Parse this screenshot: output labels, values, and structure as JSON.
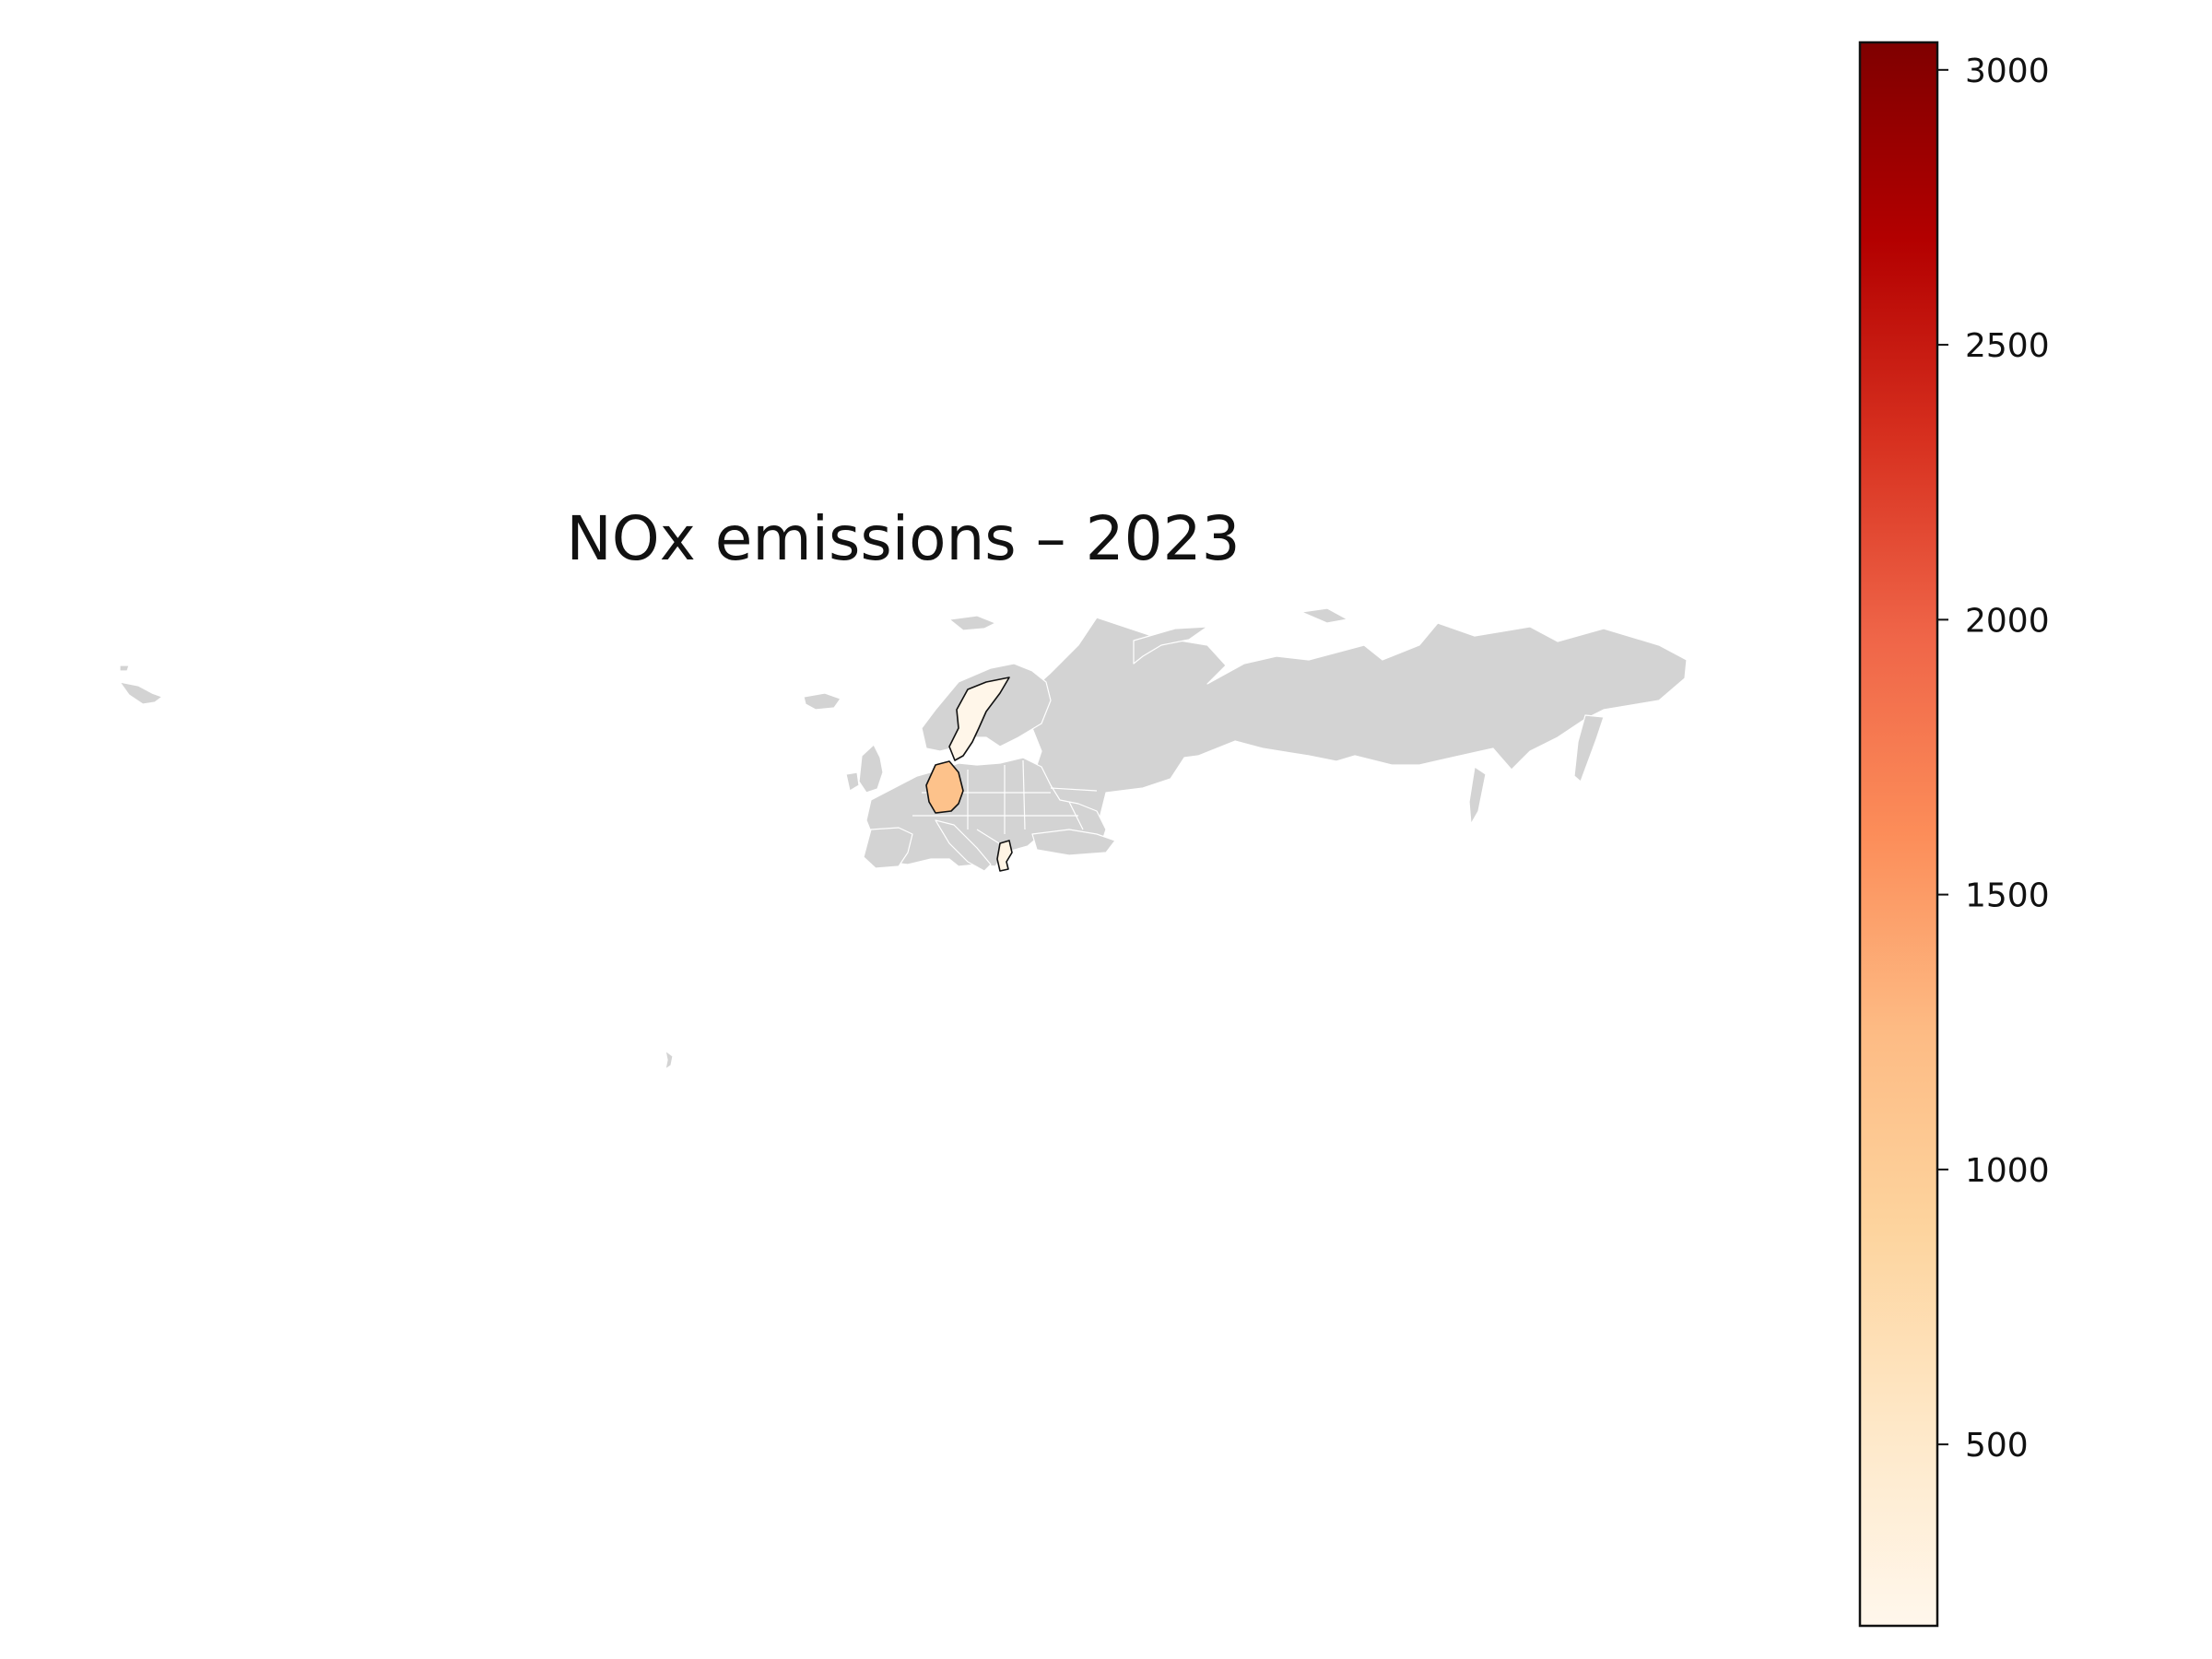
{
  "title": "NOx emissions – 2023",
  "colorbar": {
    "colormap": "OrRd",
    "vmin": 170,
    "vmax": 3050,
    "ticks": [
      {
        "value": 500,
        "label": "500"
      },
      {
        "value": 1000,
        "label": "1000"
      },
      {
        "value": 1500,
        "label": "1500"
      },
      {
        "value": 2000,
        "label": "2000"
      },
      {
        "value": 2500,
        "label": "2500"
      },
      {
        "value": 3000,
        "label": "3000"
      }
    ],
    "stops": [
      "#fff7ec",
      "#fee8c8",
      "#fdd49e",
      "#fdbb84",
      "#fc8d59",
      "#ef6548",
      "#d7301f",
      "#b30000",
      "#7f0000"
    ]
  },
  "no_data_color": "#d3d3d3",
  "chart_data": {
    "type": "choropleth",
    "title": "NOx emissions – 2023",
    "regions": [
      {
        "name": "Germany",
        "value": 1150
      },
      {
        "name": "Sweden",
        "value": 200
      },
      {
        "name": "Greece",
        "value": 250
      }
    ],
    "colorbar_range": [
      170,
      3050
    ],
    "colorbar_ticks": [
      500,
      1000,
      1500,
      2000,
      2500,
      3000
    ]
  }
}
